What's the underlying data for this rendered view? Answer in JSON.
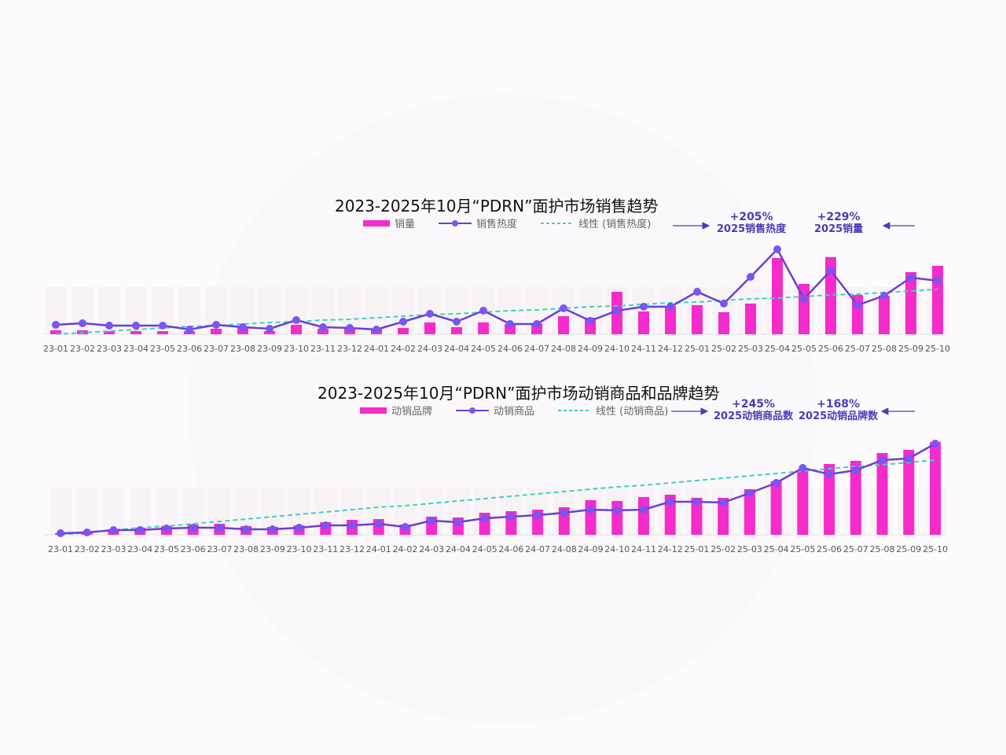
{
  "chart_data": [
    {
      "type": "bar",
      "title": "2023-2025年10月“PDRN”面护市场销售趋势",
      "categories": [
        "23-01",
        "23-02",
        "23-03",
        "23-04",
        "23-05",
        "23-06",
        "23-07",
        "23-08",
        "23-09",
        "23-10",
        "23-11",
        "23-12",
        "24-01",
        "24-02",
        "24-03",
        "24-04",
        "24-05",
        "24-06",
        "24-07",
        "24-08",
        "24-09",
        "24-10",
        "24-11",
        "24-12",
        "25-01",
        "25-02",
        "25-03",
        "25-04",
        "25-05",
        "25-06",
        "25-07",
        "25-08",
        "25-09",
        "25-10"
      ],
      "series": [
        {
          "name": "销量",
          "type": "bar",
          "color": "#f52bcb",
          "values": [
            5,
            5,
            4,
            4,
            4,
            4,
            7,
            9,
            4,
            12,
            7,
            7,
            7,
            8,
            15,
            9,
            15,
            13,
            14,
            23,
            21,
            54,
            29,
            36,
            37,
            28,
            39,
            97,
            64,
            98,
            50,
            49,
            79,
            87
          ]
        },
        {
          "name": "销售热度",
          "type": "line",
          "color": "#6a3fd6",
          "values": [
            12,
            14,
            11,
            11,
            11,
            6,
            12,
            9,
            7,
            18,
            9,
            8,
            6,
            16,
            26,
            16,
            30,
            13,
            13,
            33,
            17,
            30,
            35,
            35,
            54,
            39,
            73,
            108,
            45,
            81,
            37,
            49,
            72,
            68
          ]
        },
        {
          "name": "线性 (销售热度)",
          "type": "line-dashed",
          "color": "#3fd1c3",
          "values": [
            0,
            2,
            4,
            6,
            8,
            10,
            11,
            13,
            15,
            16,
            18,
            19,
            21,
            23,
            25,
            26,
            28,
            30,
            31,
            33,
            35,
            36,
            38,
            40,
            41,
            43,
            45,
            46,
            48,
            50,
            51,
            53,
            55,
            57
          ]
        }
      ],
      "legend_position": "top",
      "grid": false,
      "xlabel": "",
      "ylabel": "",
      "annotations": [
        {
          "value": "+205%",
          "label": "2025销售热度"
        },
        {
          "value": "+229%",
          "label": "2025销量"
        }
      ]
    },
    {
      "type": "bar",
      "title": "2023-2025年10月“PDRN”面护市场动销商品和品牌趋势",
      "categories": [
        "23-01",
        "23-02",
        "23-03",
        "23-04",
        "23-05",
        "23-06",
        "23-07",
        "23-08",
        "23-09",
        "23-10",
        "23-11",
        "23-12",
        "24-01",
        "24-02",
        "24-03",
        "24-04",
        "24-05",
        "24-06",
        "24-07",
        "24-08",
        "24-09",
        "24-10",
        "24-11",
        "24-12",
        "25-01",
        "25-02",
        "25-03",
        "25-04",
        "25-05",
        "25-06",
        "25-07",
        "25-08",
        "25-09",
        "25-10"
      ],
      "series": [
        {
          "name": "动销品牌",
          "type": "bar",
          "color": "#f52bcb",
          "values": [
            2,
            3,
            7,
            9,
            11,
            13,
            14,
            11,
            10,
            12,
            16,
            19,
            20,
            13,
            23,
            22,
            28,
            30,
            32,
            35,
            44,
            43,
            48,
            51,
            47,
            47,
            58,
            68,
            83,
            90,
            94,
            104,
            108,
            118
          ]
        },
        {
          "name": "动销商品",
          "type": "line",
          "color": "#6a3fd6",
          "values": [
            2,
            3,
            6,
            6,
            8,
            9,
            9,
            7,
            7,
            9,
            12,
            12,
            14,
            10,
            18,
            16,
            21,
            23,
            25,
            28,
            32,
            31,
            32,
            42,
            42,
            41,
            53,
            66,
            85,
            77,
            82,
            95,
            97,
            116
          ]
        },
        {
          "name": "线性 (动销商品)",
          "type": "line-dashed",
          "color": "#3fd1c3",
          "values": [
            0,
            3,
            6,
            9,
            11,
            14,
            17,
            20,
            23,
            26,
            29,
            32,
            35,
            37,
            40,
            43,
            46,
            49,
            52,
            55,
            58,
            61,
            63,
            66,
            69,
            72,
            75,
            78,
            81,
            84,
            87,
            89,
            92,
            95
          ]
        }
      ],
      "legend_position": "top",
      "grid": false,
      "xlabel": "",
      "ylabel": "",
      "annotations": [
        {
          "value": "+245%",
          "label": "2025动销商品数"
        },
        {
          "value": "+168%",
          "label": "2025动销品牌数"
        }
      ]
    }
  ],
  "chart1": {
    "title": "2023-2025年10月“PDRN”面护市场销售趋势",
    "legend": [
      "销量",
      "销售热度",
      "线性 (销售热度)"
    ],
    "ann1_pct": "+205%",
    "ann1_label": "2025销售热度",
    "ann2_pct": "+229%",
    "ann2_label": "2025销量"
  },
  "chart2": {
    "title": "2023-2025年10月“PDRN”面护市场动销商品和品牌趋势",
    "legend": [
      "动销品牌",
      "动销商品",
      "线性 (动销商品)"
    ],
    "ann1_pct": "+245%",
    "ann1_label": "2025动销商品数",
    "ann2_pct": "+168%",
    "ann2_label": "2025动销品牌数"
  },
  "colors": {
    "bar": "#f52bcb",
    "line": "#6a3fd6",
    "dot": "#7b55f0",
    "trend": "#3fd1c3",
    "annotation": "#4b3bb5"
  }
}
